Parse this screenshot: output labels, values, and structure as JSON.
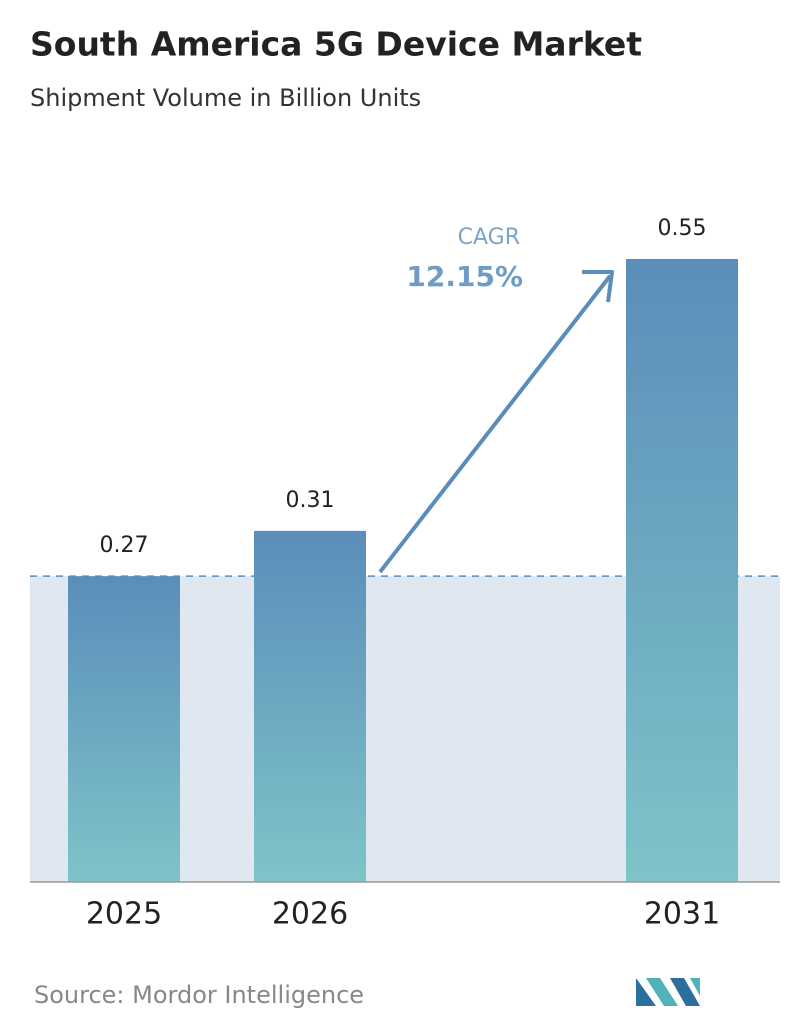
{
  "chart_data": {
    "type": "bar",
    "title": "South America 5G Device Market",
    "subtitle": "Shipment Volume in Billion Units",
    "categories": [
      "2025",
      "2026",
      "2031"
    ],
    "values": [
      0.27,
      0.31,
      0.55
    ],
    "color": "#5b8dba",
    "annotation": {
      "label": "CAGR",
      "value": "12.15%"
    },
    "source": "Source:  Mordor Intelligence"
  }
}
